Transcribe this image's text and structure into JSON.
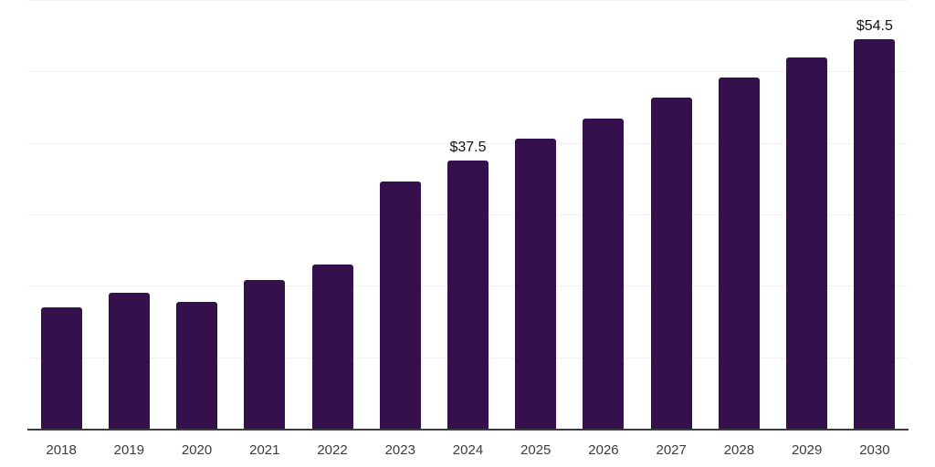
{
  "chart_data": {
    "type": "bar",
    "title": "",
    "xlabel": "",
    "ylabel": "",
    "categories": [
      "2018",
      "2019",
      "2020",
      "2021",
      "2022",
      "2023",
      "2024",
      "2025",
      "2026",
      "2027",
      "2028",
      "2029",
      "2030"
    ],
    "values": [
      17.0,
      19.0,
      17.7,
      20.8,
      23.0,
      34.6,
      37.5,
      40.6,
      43.4,
      46.3,
      49.1,
      51.9,
      54.5
    ],
    "data_labels": {
      "2024": "$37.5",
      "2030": "$54.5"
    },
    "ylim": [
      0,
      60
    ],
    "grid_step": 10,
    "grid": "horizontal",
    "legend_position": "none",
    "y_tick_labels_visible": false,
    "colors": {
      "bar": "#34104C",
      "gridline": "#f2f2f2",
      "axis_line": "#3c3c3c",
      "tick_label": "#3c3c3c",
      "data_label": "#111111",
      "background": "#ffffff"
    }
  }
}
